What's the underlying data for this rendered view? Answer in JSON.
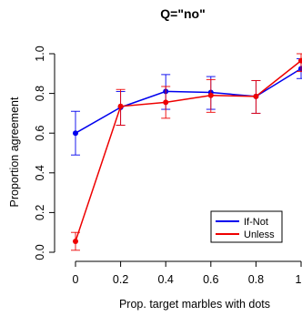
{
  "chart_data": {
    "type": "line",
    "title": "Q=\"no\"",
    "xlabel": "Prop. target marbles with dots",
    "ylabel": "Proportion agreement",
    "xlim": [
      0,
      1
    ],
    "ylim": [
      0,
      1
    ],
    "xticks": [
      0,
      0.2,
      0.4,
      0.6,
      0.8,
      1
    ],
    "xtick_labels": [
      "0",
      "0.2",
      "0.4",
      "0.6",
      "0.8",
      "1"
    ],
    "yticks": [
      0,
      0.2,
      0.4,
      0.6,
      0.8,
      1
    ],
    "ytick_labels": [
      "0.0",
      "0.2",
      "0.4",
      "0.6",
      "0.8",
      "1.0"
    ],
    "grid": false,
    "legend_position": "bottom-right",
    "series": [
      {
        "name": "If-Not",
        "color": "#0000ee",
        "x": [
          0,
          0.2,
          0.4,
          0.6,
          0.8,
          1
        ],
        "y": [
          0.6,
          0.73,
          0.81,
          0.805,
          0.785,
          0.925
        ],
        "err_low": [
          0.49,
          0.64,
          0.72,
          0.72,
          0.7,
          0.875
        ],
        "err_high": [
          0.71,
          0.81,
          0.895,
          0.885,
          0.865,
          0.975
        ]
      },
      {
        "name": "Unless",
        "color": "#ee0000",
        "x": [
          0,
          0.2,
          0.4,
          0.6,
          0.8,
          1
        ],
        "y": [
          0.055,
          0.735,
          0.755,
          0.79,
          0.785,
          0.965
        ],
        "err_low": [
          0.01,
          0.64,
          0.675,
          0.705,
          0.7,
          0.91
        ],
        "err_high": [
          0.1,
          0.82,
          0.835,
          0.87,
          0.865,
          1.0
        ]
      }
    ]
  }
}
